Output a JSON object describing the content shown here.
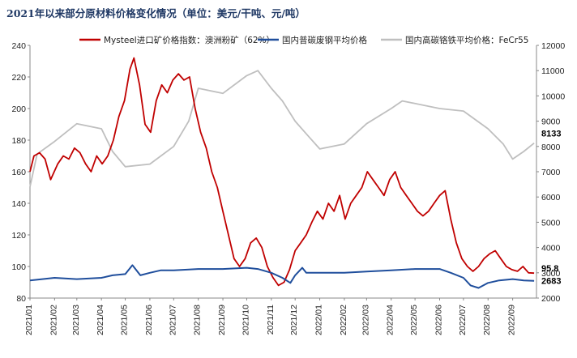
{
  "chart_data": {
    "type": "line",
    "title": "2021年以来部分原材料价格变化情况（单位：美元/干吨、元/吨）",
    "x_tick_labels": [
      "2021/01",
      "2021/02",
      "2021/03",
      "2021/04",
      "2021/05",
      "2021/06",
      "2021/07",
      "2021/08",
      "2021/09",
      "2021/10",
      "2021/11",
      "2021/12",
      "2022/01",
      "2022/02",
      "2022/03",
      "2022/04",
      "2022/05",
      "2022/06",
      "2022/07",
      "2022/08",
      "2022/09"
    ],
    "y_left": {
      "min": 80,
      "max": 240,
      "ticks": [
        "80",
        "100",
        "120",
        "140",
        "160",
        "180",
        "200",
        "220",
        "240"
      ]
    },
    "y_right": {
      "min": 2000,
      "max": 12000,
      "ticks": [
        "2000",
        "3000",
        "4000",
        "5000",
        "6000",
        "7000",
        "8000",
        "9000",
        "10000",
        "11000",
        "12000"
      ]
    },
    "grid": false,
    "legend_placement": "top",
    "series": [
      {
        "name": "Mysteel进口矿价格指数：澳洲粉矿（62%）",
        "axis": "left",
        "color": "#c00000",
        "x": [
          "2021/01/01",
          "2021/01/06",
          "2021/01/13",
          "2021/01/20",
          "2021/01/27",
          "2021/02/05",
          "2021/02/12",
          "2021/02/19",
          "2021/02/26",
          "2021/03/05",
          "2021/03/12",
          "2021/03/19",
          "2021/03/26",
          "2021/04/02",
          "2021/04/09",
          "2021/04/16",
          "2021/04/23",
          "2021/04/30",
          "2021/05/07",
          "2021/05/12",
          "2021/05/19",
          "2021/05/26",
          "2021/06/02",
          "2021/06/09",
          "2021/06/16",
          "2021/06/23",
          "2021/06/30",
          "2021/07/07",
          "2021/07/14",
          "2021/07/21",
          "2021/07/28",
          "2021/08/04",
          "2021/08/11",
          "2021/08/18",
          "2021/08/25",
          "2021/09/01",
          "2021/09/08",
          "2021/09/15",
          "2021/09/22",
          "2021/09/29",
          "2021/10/06",
          "2021/10/13",
          "2021/10/20",
          "2021/10/27",
          "2021/11/03",
          "2021/11/10",
          "2021/11/17",
          "2021/11/24",
          "2021/12/01",
          "2021/12/08",
          "2021/12/15",
          "2021/12/22",
          "2021/12/29",
          "2022/01/05",
          "2022/01/12",
          "2022/01/19",
          "2022/01/26",
          "2022/02/02",
          "2022/02/09",
          "2022/02/16",
          "2022/02/23",
          "2022/03/02",
          "2022/03/09",
          "2022/03/16",
          "2022/03/23",
          "2022/03/30",
          "2022/04/06",
          "2022/04/13",
          "2022/04/20",
          "2022/04/27",
          "2022/05/04",
          "2022/05/11",
          "2022/05/18",
          "2022/05/25",
          "2022/06/01",
          "2022/06/08",
          "2022/06/15",
          "2022/06/22",
          "2022/06/29",
          "2022/07/06",
          "2022/07/13",
          "2022/07/20",
          "2022/07/27",
          "2022/08/03",
          "2022/08/10",
          "2022/08/17",
          "2022/08/24",
          "2022/08/31",
          "2022/09/07",
          "2022/09/14",
          "2022/09/21",
          "2022/09/28"
        ],
        "values": [
          160,
          170,
          172,
          168,
          155,
          165,
          170,
          168,
          175,
          172,
          165,
          160,
          170,
          165,
          170,
          180,
          195,
          205,
          225,
          232,
          215,
          190,
          185,
          205,
          215,
          210,
          218,
          222,
          218,
          220,
          200,
          185,
          175,
          160,
          150,
          135,
          120,
          105,
          100,
          105,
          115,
          118,
          112,
          100,
          93,
          88,
          90,
          98,
          110,
          115,
          120,
          128,
          135,
          130,
          140,
          135,
          145,
          130,
          140,
          145,
          150,
          160,
          155,
          150,
          145,
          155,
          160,
          150,
          145,
          140,
          135,
          132,
          135,
          140,
          145,
          148,
          130,
          115,
          105,
          100,
          97,
          100,
          105,
          108,
          110,
          105,
          100,
          98,
          97,
          100,
          96,
          95.8
        ]
      },
      {
        "name": "国内普碳废钢平均价格",
        "axis": "right",
        "color": "#1f4e9c",
        "x": [
          "2021/01/01",
          "2021/02/01",
          "2021/03/01",
          "2021/04/01",
          "2021/04/15",
          "2021/05/01",
          "2021/05/10",
          "2021/05/20",
          "2021/06/01",
          "2021/06/15",
          "2021/07/01",
          "2021/08/01",
          "2021/09/01",
          "2021/10/01",
          "2021/10/15",
          "2021/11/01",
          "2021/11/15",
          "2021/11/25",
          "2021/12/01",
          "2021/12/10",
          "2021/12/15",
          "2022/01/01",
          "2022/02/01",
          "2022/03/01",
          "2022/04/01",
          "2022/05/01",
          "2022/06/01",
          "2022/06/15",
          "2022/07/01",
          "2022/07/10",
          "2022/07/20",
          "2022/08/01",
          "2022/08/15",
          "2022/09/01",
          "2022/09/15",
          "2022/09/28"
        ],
        "values": [
          2700,
          2800,
          2750,
          2800,
          2900,
          2950,
          3300,
          2900,
          3000,
          3100,
          3100,
          3150,
          3150,
          3200,
          3150,
          3000,
          2800,
          2600,
          2900,
          3200,
          3000,
          3000,
          3000,
          3050,
          3100,
          3150,
          3150,
          3000,
          2800,
          2500,
          2400,
          2600,
          2700,
          2750,
          2700,
          2683
        ]
      },
      {
        "name": "国内高碳铬铁平均价格：FeCr55",
        "axis": "right",
        "color": "#bfbfbf",
        "x": [
          "2021/01/01",
          "2021/01/10",
          "2021/02/01",
          "2021/03/01",
          "2021/04/01",
          "2021/04/15",
          "2021/05/01",
          "2021/06/01",
          "2021/07/01",
          "2021/07/20",
          "2021/08/01",
          "2021/09/01",
          "2021/10/01",
          "2021/10/15",
          "2021/11/01",
          "2021/11/15",
          "2021/12/01",
          "2021/12/15",
          "2022/01/01",
          "2022/02/01",
          "2022/03/01",
          "2022/04/01",
          "2022/04/15",
          "2022/05/01",
          "2022/06/01",
          "2022/07/01",
          "2022/08/01",
          "2022/08/20",
          "2022/09/01",
          "2022/09/15",
          "2022/09/28"
        ],
        "values": [
          6400,
          7700,
          8200,
          8900,
          8700,
          7800,
          7200,
          7300,
          8000,
          9000,
          10300,
          10100,
          10800,
          11000,
          10300,
          9800,
          9000,
          8500,
          7900,
          8100,
          8900,
          9500,
          9800,
          9700,
          9500,
          9400,
          8700,
          8100,
          7500,
          7800,
          8133
        ]
      }
    ],
    "end_labels": {
      "iron_ore": "95.8",
      "ferrochrome": "8133",
      "scrap": "2683"
    }
  }
}
